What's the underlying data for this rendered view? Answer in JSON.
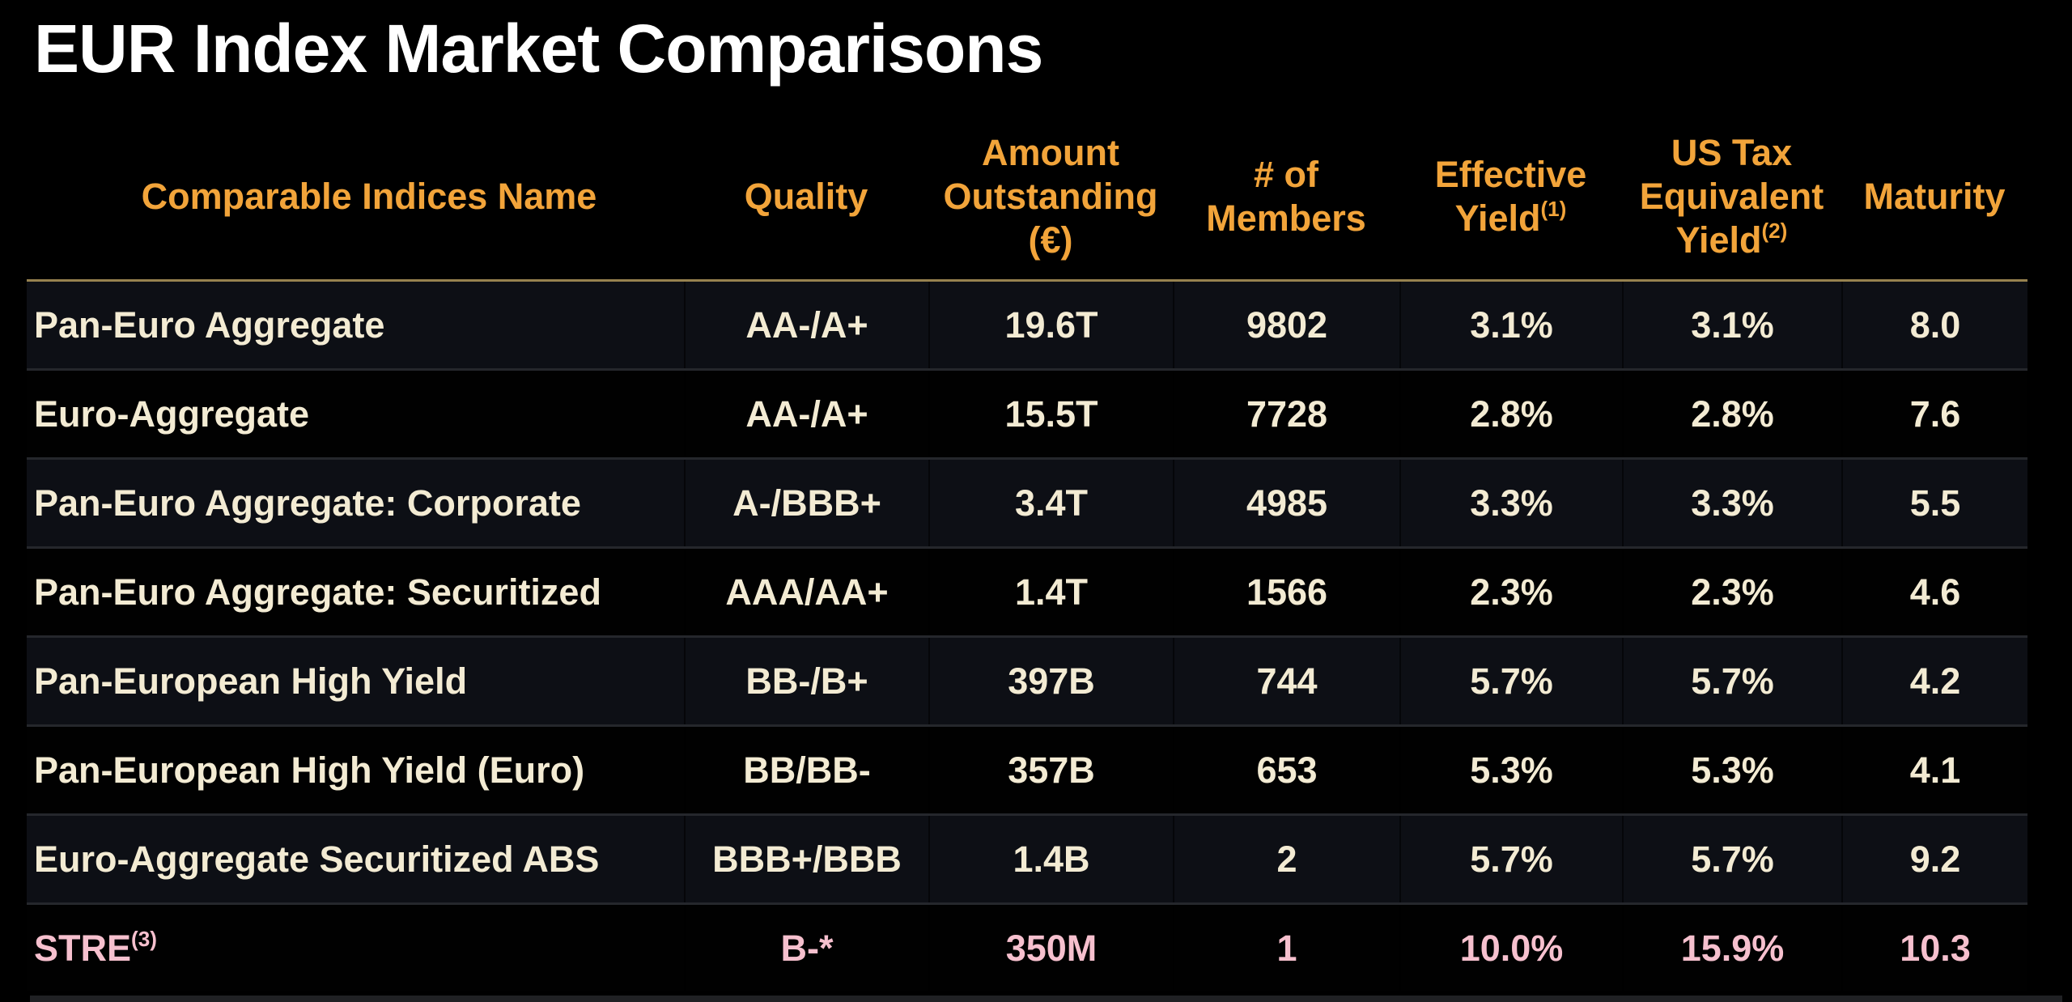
{
  "page": {
    "title": "EUR Index Market Comparisons"
  },
  "colors": {
    "title_text": "#FFFFFF",
    "header_text": "#F2A43A",
    "body_text": "#F3EBD3",
    "highlight_row_text": "#F6C0CE",
    "gold_rule": "#97824F",
    "row_odd_bg": "#0D0F15",
    "row_even_bg": "#010101",
    "row_divider": "#25272C",
    "background": "#000000"
  },
  "table": {
    "headers": {
      "name": "Comparable Indices Name",
      "quality": "Quality",
      "amount_line1": "Amount",
      "amount_line2": "Outstanding",
      "amount_line3": "(€)",
      "members_line1": "# of",
      "members_line2": "Members",
      "effective_line1": "Effective",
      "effective_line2": "Yield",
      "effective_sup": "(1)",
      "ustax_line1": "US Tax",
      "ustax_line2": "Equivalent",
      "ustax_line3": "Yield",
      "ustax_sup": "(2)",
      "maturity": "Maturity"
    },
    "rows": [
      {
        "name": "Pan-Euro Aggregate",
        "quality": "AA-/A+",
        "amount_outstanding": "19.6T",
        "members": "9802",
        "effective_yield": "3.1%",
        "us_tax_equivalent_yield": "3.1%",
        "maturity": "8.0"
      },
      {
        "name": "Euro-Aggregate",
        "quality": "AA-/A+",
        "amount_outstanding": "15.5T",
        "members": "7728",
        "effective_yield": "2.8%",
        "us_tax_equivalent_yield": "2.8%",
        "maturity": "7.6"
      },
      {
        "name": "Pan-Euro Aggregate: Corporate",
        "quality": "A-/BBB+",
        "amount_outstanding": "3.4T",
        "members": "4985",
        "effective_yield": "3.3%",
        "us_tax_equivalent_yield": "3.3%",
        "maturity": "5.5"
      },
      {
        "name": "Pan-Euro Aggregate: Securitized",
        "quality": "AAA/AA+",
        "amount_outstanding": "1.4T",
        "members": "1566",
        "effective_yield": "2.3%",
        "us_tax_equivalent_yield": "2.3%",
        "maturity": "4.6"
      },
      {
        "name": "Pan-European High Yield",
        "quality": "BB-/B+",
        "amount_outstanding": "397B",
        "members": "744",
        "effective_yield": "5.7%",
        "us_tax_equivalent_yield": "5.7%",
        "maturity": "4.2"
      },
      {
        "name": "Pan-European High Yield (Euro)",
        "quality": "BB/BB-",
        "amount_outstanding": "357B",
        "members": "653",
        "effective_yield": "5.3%",
        "us_tax_equivalent_yield": "5.3%",
        "maturity": "4.1"
      },
      {
        "name": "Euro-Aggregate Securitized ABS",
        "quality": "BBB+/BBB",
        "amount_outstanding": "1.4B",
        "members": "2",
        "effective_yield": "5.7%",
        "us_tax_equivalent_yield": "5.7%",
        "maturity": "9.2"
      },
      {
        "name": "STRE",
        "name_sup": "(3)",
        "quality": "B-*",
        "amount_outstanding": "350M",
        "members": "1",
        "effective_yield": "10.0%",
        "us_tax_equivalent_yield": "15.9%",
        "maturity": "10.3"
      }
    ]
  }
}
